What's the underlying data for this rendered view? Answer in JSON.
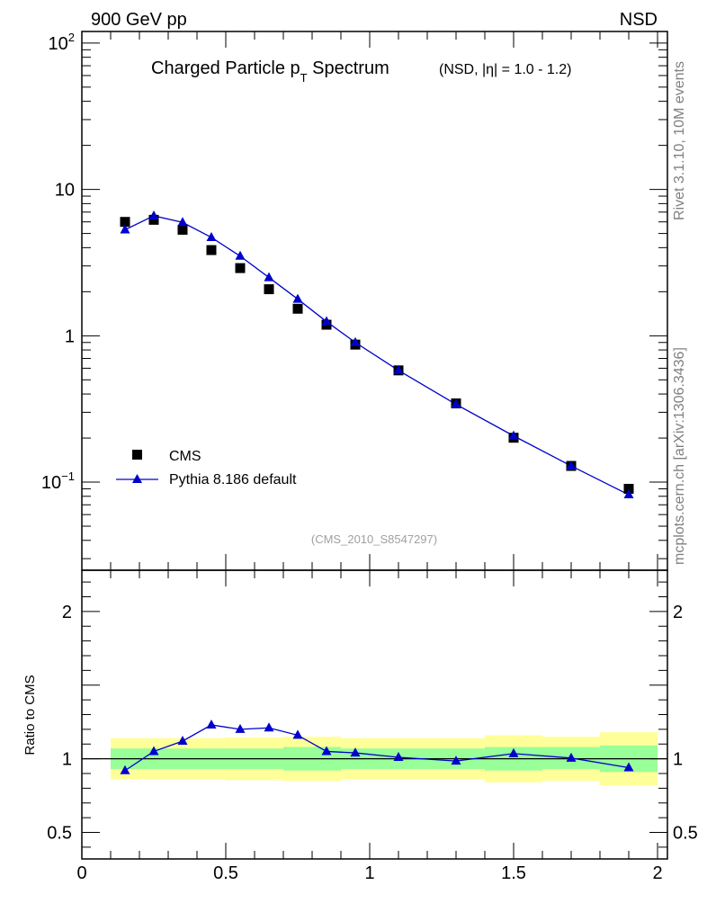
{
  "header": {
    "energy_label": "900 GeV pp",
    "process_label": "NSD"
  },
  "side_labels": {
    "rivet": "Rivet 3.1.10,  10M events",
    "source": "mcplots.cern.ch [arXiv:1306.3436]"
  },
  "chart_data": [
    {
      "type": "scatter",
      "title": {
        "main": "Charged Particle p",
        "sub": "T",
        "main_end": " Spectrum",
        "detail": "(NSD, |η| = 1.0 - 1.2)"
      },
      "y_scale": "log",
      "ylim": [
        0.025,
        120
      ],
      "xlim": [
        0,
        2.0
      ],
      "y_tick_labels": [
        {
          "base": "10",
          "exp": "2",
          "value": 100
        },
        {
          "base": "10",
          "exp": "",
          "value": 10
        },
        {
          "base": "1",
          "exp": "",
          "value": 1
        },
        {
          "base": "10",
          "exp": "−1",
          "value": 0.1
        }
      ],
      "series": [
        {
          "name": "CMS",
          "marker": "square",
          "color": "#000000",
          "x": [
            0.15,
            0.25,
            0.35,
            0.45,
            0.55,
            0.65,
            0.75,
            0.85,
            0.95,
            1.1,
            1.3,
            1.5,
            1.7,
            1.9
          ],
          "y": [
            6.0,
            6.2,
            5.3,
            3.85,
            2.9,
            2.08,
            1.53,
            1.19,
            0.87,
            0.58,
            0.345,
            0.201,
            0.129,
            0.09
          ]
        },
        {
          "name": "Pythia 8.186 default",
          "marker": "triangle",
          "color": "#0000cc",
          "x": [
            0.15,
            0.25,
            0.35,
            0.45,
            0.55,
            0.65,
            0.75,
            0.85,
            0.95,
            1.1,
            1.3,
            1.5,
            1.7,
            1.9
          ],
          "y": [
            5.3,
            6.6,
            5.95,
            4.7,
            3.5,
            2.5,
            1.78,
            1.25,
            0.9,
            0.58,
            0.34,
            0.207,
            0.129,
            0.082
          ]
        }
      ],
      "legend_position": "bottom-left",
      "watermark": "(CMS_2010_S8547297)"
    },
    {
      "type": "line",
      "ylabel": "Ratio to CMS",
      "ylim": [
        0.32,
        2.28
      ],
      "xlim": [
        0,
        2.0
      ],
      "y_tick_labels": [
        "2",
        "1",
        "0.5"
      ],
      "y_tick_values": [
        2,
        1,
        0.5
      ],
      "x_tick_labels": [
        "0",
        "0.5",
        "1",
        "1.5",
        "2"
      ],
      "x_tick_values": [
        0,
        0.5,
        1,
        1.5,
        2
      ],
      "reference_line": 1,
      "bands": {
        "bins": [
          [
            0.1,
            0.2
          ],
          [
            0.2,
            0.3
          ],
          [
            0.3,
            0.4
          ],
          [
            0.4,
            0.5
          ],
          [
            0.5,
            0.6
          ],
          [
            0.6,
            0.7
          ],
          [
            0.7,
            0.8
          ],
          [
            0.8,
            0.9
          ],
          [
            0.9,
            1.0
          ],
          [
            1.0,
            1.2
          ],
          [
            1.2,
            1.4
          ],
          [
            1.4,
            1.6
          ],
          [
            1.6,
            1.8
          ],
          [
            1.8,
            2.0
          ]
        ],
        "stat_low": [
          0.93,
          0.93,
          0.93,
          0.93,
          0.93,
          0.93,
          0.92,
          0.92,
          0.93,
          0.93,
          0.93,
          0.92,
          0.93,
          0.91
        ],
        "stat_high": [
          1.07,
          1.07,
          1.07,
          1.07,
          1.07,
          1.07,
          1.08,
          1.08,
          1.07,
          1.07,
          1.07,
          1.08,
          1.08,
          1.09
        ],
        "total_low": [
          0.86,
          0.86,
          0.86,
          0.86,
          0.855,
          0.855,
          0.85,
          0.85,
          0.86,
          0.86,
          0.86,
          0.84,
          0.85,
          0.82
        ],
        "total_high": [
          1.14,
          1.14,
          1.14,
          1.14,
          1.145,
          1.145,
          1.15,
          1.15,
          1.14,
          1.14,
          1.14,
          1.16,
          1.15,
          1.18
        ],
        "stat_color": "#99ff99",
        "total_color": "#ffff99"
      },
      "series": [
        {
          "name": "Pythia 8.186 default",
          "color": "#0000cc",
          "x": [
            0.15,
            0.25,
            0.35,
            0.45,
            0.55,
            0.65,
            0.75,
            0.85,
            0.95,
            1.1,
            1.3,
            1.5,
            1.7,
            1.9
          ],
          "y": [
            0.92,
            1.05,
            1.12,
            1.23,
            1.2,
            1.21,
            1.16,
            1.05,
            1.04,
            1.01,
            0.985,
            1.035,
            1.005,
            0.94
          ]
        }
      ]
    }
  ]
}
